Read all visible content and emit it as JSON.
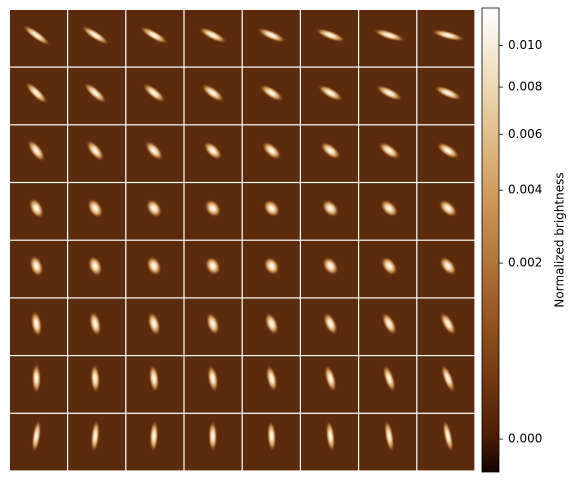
{
  "chart_data": {
    "type": "image_grid",
    "colorbar_label": "Normalized brightness",
    "clim": [
      -7e-05,
      0.012
    ],
    "scale": "sqrt",
    "cticks": [
      {
        "value": 0,
        "label": "0.000"
      },
      {
        "value": 0.002,
        "label": "0.002"
      },
      {
        "value": 0.004,
        "label": "0.004"
      },
      {
        "value": 0.006,
        "label": "0.006"
      },
      {
        "value": 0.008,
        "label": "0.008"
      },
      {
        "value": 0.01,
        "label": "0.010"
      }
    ]
  }
}
